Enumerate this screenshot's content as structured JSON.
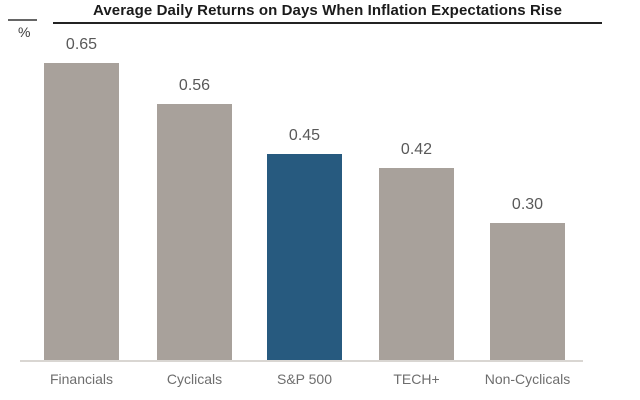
{
  "chart_data": {
    "type": "bar",
    "title": "Average Daily Returns on Days When Inflation Expectations Rise",
    "unit_label": "%",
    "categories": [
      "Financials",
      "Cyclicals",
      "S&P 500",
      "TECH+",
      "Non-Cyclicals"
    ],
    "values": [
      0.65,
      0.56,
      0.45,
      0.42,
      0.3
    ],
    "value_labels": [
      "0.65",
      "0.56",
      "0.45",
      "0.42",
      "0.30"
    ],
    "highlight_index": 2,
    "highlighted_category": "S&P 500",
    "ylim": [
      0,
      0.7
    ],
    "grid": false,
    "legend": false,
    "value_labels_shown": true,
    "colors": {
      "default_bar": "#A8A19B",
      "highlight_bar": "#275A7F",
      "axis_line": "#D9D6D2",
      "value_label": "#595959",
      "category_label": "#6E6E6E",
      "title_text": "#1B1B1B",
      "title_rule": "#232323"
    }
  }
}
